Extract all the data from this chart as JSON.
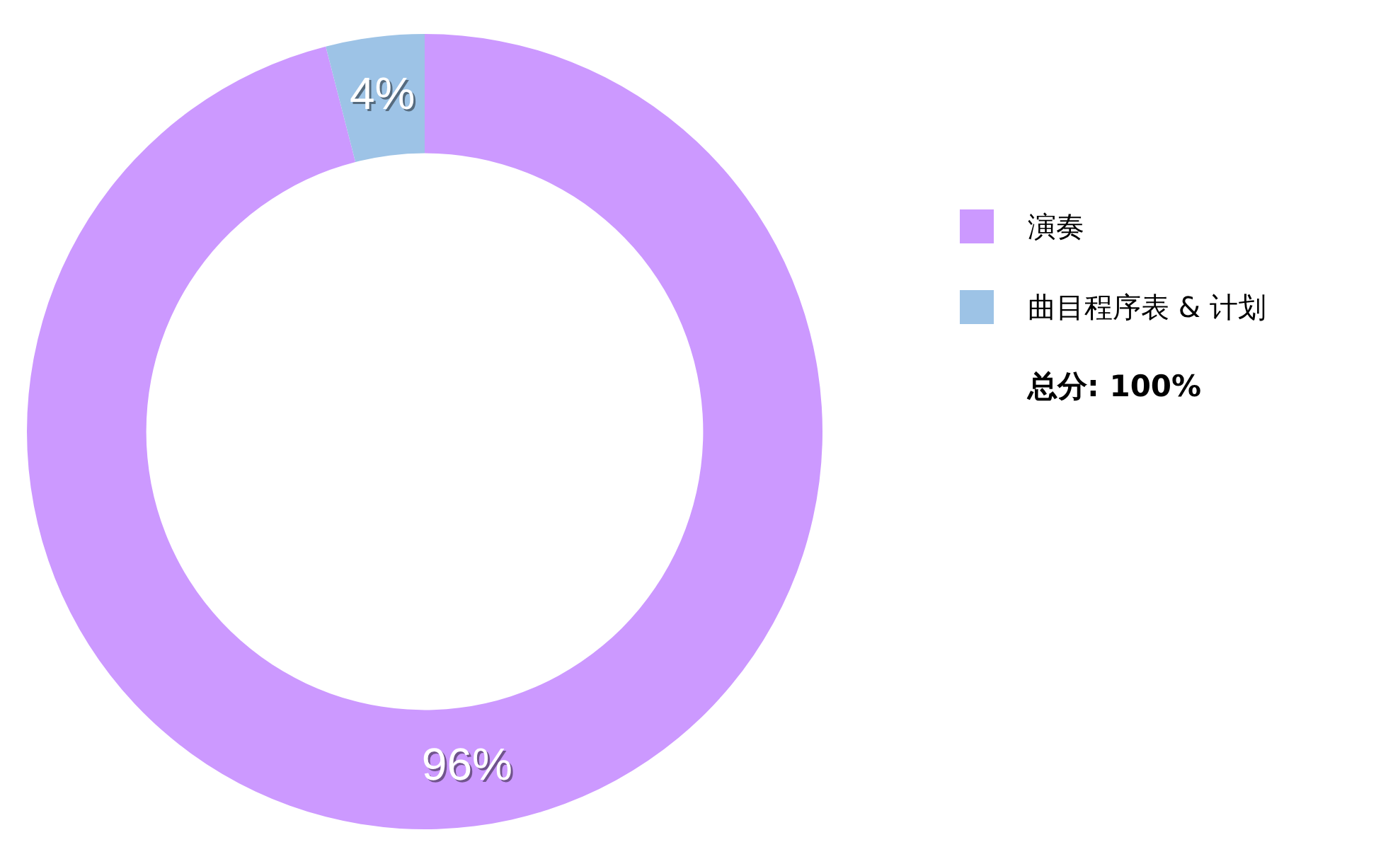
{
  "chart_data": {
    "type": "donut",
    "categories": [
      "演奏",
      "曲目程序表 & 计划"
    ],
    "values": [
      96,
      4
    ],
    "colors": [
      "#cc99ff",
      "#9dc3e6"
    ],
    "value_labels": [
      "96%",
      "4%"
    ],
    "legend": "right",
    "annotations": [
      "总分: 100%"
    ]
  }
}
